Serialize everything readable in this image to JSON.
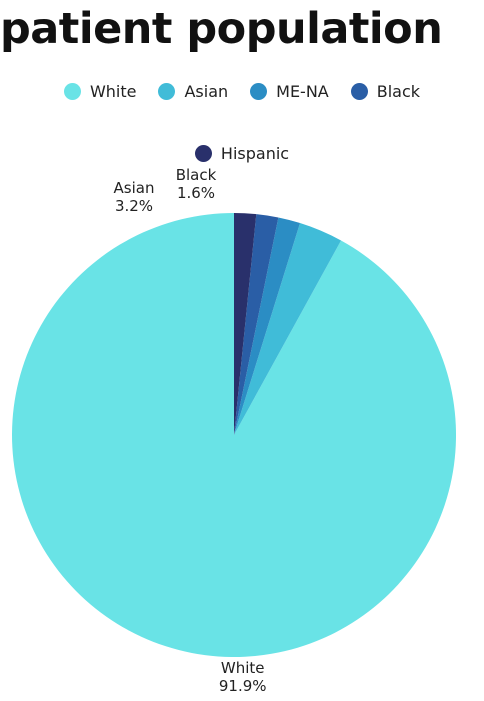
{
  "title": "patient population",
  "legend": [
    {
      "label": "White",
      "color": "#69e3e6"
    },
    {
      "label": "Asian",
      "color": "#40bcd8"
    },
    {
      "label": "ME-NA",
      "color": "#2b8dc4"
    },
    {
      "label": "Black",
      "color": "#2a5ea6"
    },
    {
      "label": "Hispanic",
      "color": "#29306b"
    }
  ],
  "chart_data": {
    "type": "pie",
    "title": "patient population",
    "categories": [
      "White",
      "Asian",
      "ME-NA",
      "Black",
      "Hispanic"
    ],
    "values": [
      91.9,
      3.2,
      1.6,
      1.6,
      1.6
    ],
    "colors": [
      "#69e3e6",
      "#40bcd8",
      "#2b8dc4",
      "#2a5ea6",
      "#29306b"
    ],
    "data_labels": [
      {
        "name": "White",
        "value": "91.9%"
      },
      {
        "name": "Asian",
        "value": "3.2%"
      },
      {
        "name": "Black",
        "value": "1.6%"
      }
    ],
    "legend_position": "top",
    "start_angle": "12 o'clock",
    "direction": "counterclockwise"
  }
}
